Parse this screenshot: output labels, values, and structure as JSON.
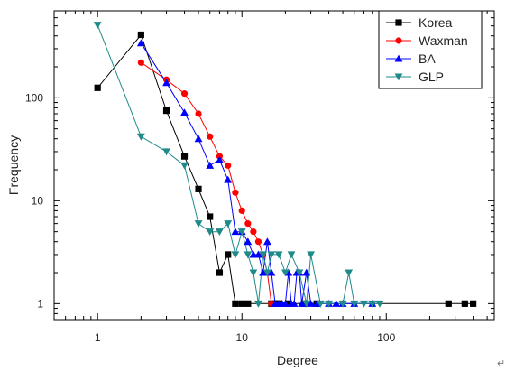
{
  "chart_data": {
    "type": "scatter",
    "xlabel": "Degree",
    "ylabel": "Frequency",
    "xscale": "log",
    "yscale": "log",
    "xlim": [
      0.5,
      560
    ],
    "ylim": [
      0.7,
      700
    ],
    "x_ticks": [
      {
        "value": 1,
        "label": "1"
      },
      {
        "value": 10,
        "label": "10"
      },
      {
        "value": 100,
        "label": "100"
      }
    ],
    "y_ticks": [
      {
        "value": 1,
        "label": "1"
      },
      {
        "value": 10,
        "label": "10"
      },
      {
        "value": 100,
        "label": "100"
      }
    ],
    "legend_position": "top-right",
    "series": [
      {
        "name": "Korea",
        "color": "#000000",
        "marker": "square",
        "x": [
          1,
          2,
          3,
          4,
          5,
          6,
          7,
          8,
          9,
          10,
          11,
          16,
          17,
          18,
          21,
          27,
          33,
          270,
          350,
          400
        ],
        "y": [
          125,
          410,
          75,
          27,
          13,
          7,
          2,
          3,
          1,
          1,
          1,
          1,
          1,
          1,
          1,
          1,
          1,
          1,
          1,
          1
        ]
      },
      {
        "name": "Waxman",
        "color": "#ff0000",
        "marker": "circle",
        "x": [
          2,
          3,
          4,
          5,
          6,
          7,
          8,
          9,
          10,
          11,
          12,
          13,
          14,
          15,
          16
        ],
        "y": [
          220,
          150,
          110,
          70,
          42,
          27,
          22,
          12,
          8,
          6,
          5,
          4,
          3,
          2,
          1
        ]
      },
      {
        "name": "BA",
        "color": "#0000ff",
        "marker": "triangle-up",
        "x": [
          2,
          3,
          4,
          5,
          6,
          7,
          8,
          9,
          10,
          11,
          12,
          13,
          14,
          15,
          16,
          17,
          18,
          19,
          20,
          21,
          22,
          23,
          24,
          25,
          26,
          28,
          30,
          33,
          40,
          45,
          50,
          60,
          80
        ],
        "y": [
          340,
          140,
          72,
          40,
          22,
          25,
          16,
          5,
          5,
          4,
          3,
          3,
          2,
          4,
          2,
          1,
          1,
          1,
          1,
          2,
          1,
          1,
          2,
          2,
          1,
          2,
          1,
          1,
          1,
          1,
          1,
          1,
          1
        ]
      },
      {
        "name": "GLP",
        "color": "#1f8a8a",
        "marker": "triangle-down",
        "x": [
          1,
          2,
          3,
          4,
          5,
          6,
          7,
          8,
          9,
          10,
          11,
          12,
          13,
          14,
          15,
          16,
          18,
          20,
          22,
          25,
          28,
          30,
          35,
          40,
          50,
          55,
          60,
          70,
          80,
          90
        ],
        "y": [
          510,
          42,
          30,
          22,
          6,
          5,
          5,
          6,
          3,
          5,
          3,
          2,
          1,
          3,
          2,
          3,
          3,
          2,
          3,
          2,
          1,
          3,
          1,
          1,
          1,
          2,
          1,
          1,
          1,
          1
        ]
      }
    ]
  },
  "trailing_mark": "↵"
}
